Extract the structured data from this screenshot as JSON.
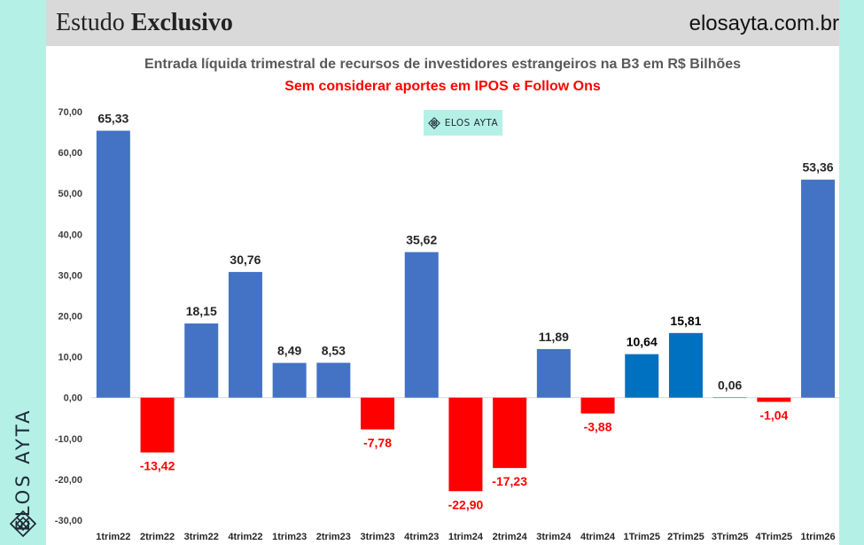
{
  "header": {
    "title_regular": "Estudo ",
    "title_bold": "Exclusivo",
    "site": "elosayta.com.br"
  },
  "brand": {
    "vertical_text": "ELOS AYTA",
    "watermark_text": "ELOS AYTA",
    "accent_color": "#b4f0e6"
  },
  "chart_data": {
    "type": "bar",
    "title": "Entrada líquida trimestral de recursos de investidores estrangeiros na B3 em R$ Bilhões",
    "subtitle": "Sem considerar aportes em IPOS e Follow Ons",
    "categories": [
      "1trim22",
      "2trim22",
      "3trim22",
      "4trim22",
      "1trim23",
      "2trim23",
      "3trim23",
      "4trim23",
      "1trim24",
      "2trim24",
      "3trim24",
      "4trim24",
      "1Trim25",
      "2Trim25",
      "3Trim25",
      "4Trim25",
      "1trim26"
    ],
    "values": [
      65.33,
      -13.42,
      18.15,
      30.76,
      8.49,
      8.53,
      -7.78,
      35.62,
      -22.9,
      -17.23,
      11.89,
      -3.88,
      10.64,
      15.81,
      0.06,
      -1.04,
      53.36
    ],
    "value_labels": [
      "65,33",
      "-13,42",
      "18,15",
      "30,76",
      "8,49",
      "8,53",
      "-7,78",
      "35,62",
      "-22,90",
      "-17,23",
      "11,89",
      "-3,88",
      "10,64",
      "15,81",
      "0,06",
      "-1,04",
      "53,36"
    ],
    "bar_colors": [
      "#4472c4",
      "#ff0000",
      "#4472c4",
      "#4472c4",
      "#4472c4",
      "#4472c4",
      "#ff0000",
      "#4472c4",
      "#ff0000",
      "#ff0000",
      "#4472c4",
      "#ff0000",
      "#0070c0",
      "#0070c0",
      "#4472c4",
      "#ff0000",
      "#4472c4"
    ],
    "label_colors": [
      "#262626",
      "#ff0000",
      "#262626",
      "#262626",
      "#262626",
      "#262626",
      "#ff0000",
      "#262626",
      "#ff0000",
      "#ff0000",
      "#262626",
      "#ff0000",
      "#000000",
      "#000000",
      "#262626",
      "#ff0000",
      "#262626"
    ],
    "yticks": [
      70,
      60,
      50,
      40,
      30,
      20,
      10,
      0,
      -10,
      -20,
      -30
    ],
    "ytick_labels": [
      "70,00",
      "60,00",
      "50,00",
      "40,00",
      "30,00",
      "20,00",
      "10,00",
      "0,00",
      "-10,00",
      "-20,00",
      "-30,00"
    ],
    "ylim": [
      -30,
      70
    ],
    "xlabel": "",
    "ylabel": "",
    "grid": false,
    "legend": "none"
  }
}
